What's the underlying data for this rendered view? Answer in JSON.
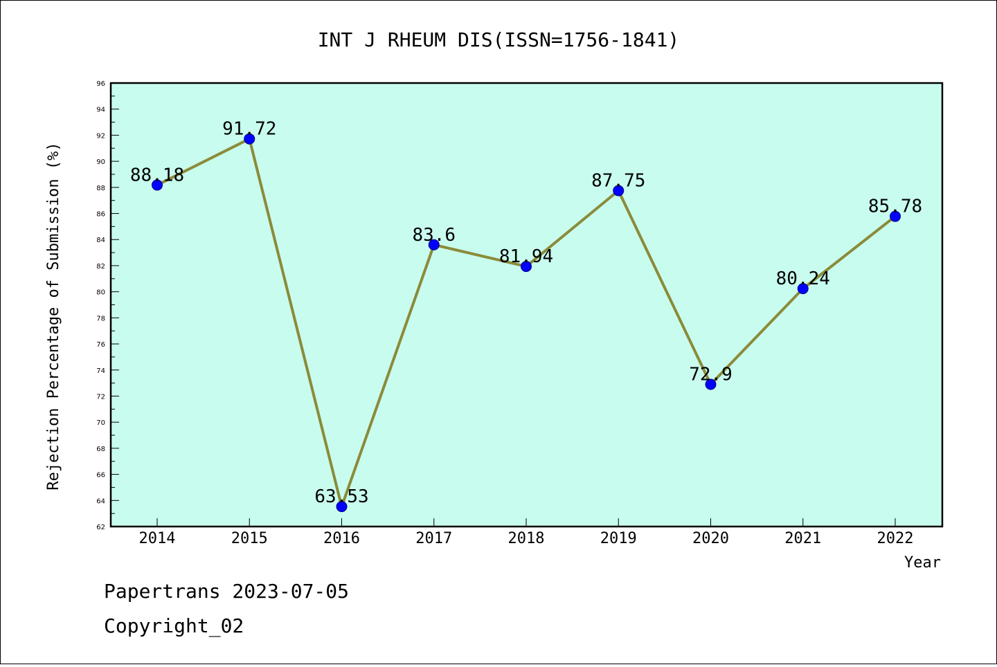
{
  "chart_data": {
    "type": "line",
    "title": "INT J RHEUM DIS(ISSN=1756-1841)",
    "xlabel": "Year",
    "ylabel": "Rejection Percentage of Submission (%)",
    "categories": [
      "2014",
      "2015",
      "2016",
      "2017",
      "2018",
      "2019",
      "2020",
      "2021",
      "2022"
    ],
    "series": [
      {
        "values": [
          88.18,
          91.72,
          63.53,
          83.6,
          81.94,
          87.75,
          72.9,
          80.24,
          85.78
        ],
        "labels": [
          "88.18",
          "91.72",
          "63.53",
          "83.6",
          "81.94",
          "87.75",
          "72.9",
          "80.24",
          "85.78"
        ]
      }
    ],
    "ylim": [
      62,
      96
    ],
    "yticks": [
      "62",
      "64",
      "66",
      "68",
      "70",
      "72",
      "74",
      "76",
      "78",
      "80",
      "82",
      "84",
      "86",
      "88",
      "90",
      "92",
      "94",
      "96"
    ],
    "grid": false,
    "colors": {
      "plot_background": "#c8fcee",
      "line": "#8b8b3a",
      "marker": "#0000ff",
      "marker_edge": "#000080"
    }
  },
  "footer": {
    "line1": "Papertrans 2023-07-05",
    "line2": "Copyright_02"
  }
}
